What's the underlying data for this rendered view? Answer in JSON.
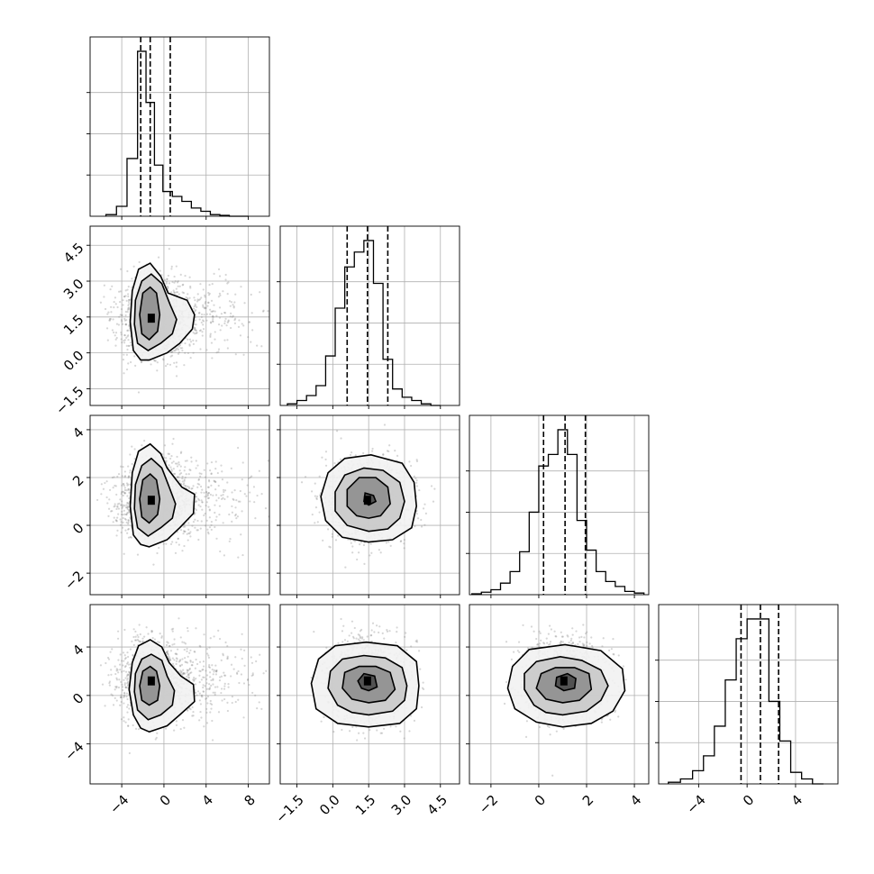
{
  "chart_data": {
    "type": "corner",
    "grid": true,
    "parameters": [
      {
        "index": 0,
        "range": [
          -7,
          10
        ],
        "ticks": [
          -4,
          0,
          4,
          8
        ],
        "tick_labels": [
          "−4",
          "0",
          "4",
          "8"
        ],
        "quantiles": [
          -2.2,
          -1.3,
          0.6
        ]
      },
      {
        "index": 1,
        "range": [
          -2.2,
          5.3
        ],
        "ticks": [
          -1.5,
          0.0,
          1.5,
          3.0,
          4.5
        ],
        "tick_labels": [
          "−1.5",
          "0.0",
          "1.5",
          "3.0",
          "4.5"
        ],
        "quantiles": [
          0.6,
          1.45,
          2.3
        ]
      },
      {
        "index": 2,
        "range": [
          -2.9,
          4.6
        ],
        "ticks": [
          -2,
          0,
          2,
          4
        ],
        "tick_labels": [
          "−2",
          "0",
          "2",
          "4"
        ],
        "quantiles": [
          0.2,
          1.1,
          1.95
        ]
      },
      {
        "index": 3,
        "range": [
          -7.3,
          7.5
        ],
        "ticks": [
          -4,
          0,
          4
        ],
        "tick_labels": [
          "−4",
          "0",
          "4"
        ],
        "quantiles": [
          -0.5,
          1.1,
          2.6
        ]
      }
    ],
    "histograms": [
      {
        "param": 0,
        "bin_edges": [
          -5.5,
          -4.5,
          -3.5,
          -2.5,
          -1.7,
          -0.9,
          -0.1,
          0.8,
          1.7,
          2.6,
          3.5,
          4.4,
          5.3,
          6.2,
          7.1,
          8.0
        ],
        "counts": [
          0.01,
          0.06,
          0.35,
          1.0,
          0.69,
          0.31,
          0.15,
          0.12,
          0.09,
          0.05,
          0.03,
          0.01,
          0.005,
          0.0,
          0.0
        ],
        "ylim": [
          0,
          1.0
        ]
      },
      {
        "param": 1,
        "bin_edges": [
          -1.9,
          -1.5,
          -1.1,
          -0.7,
          -0.3,
          0.1,
          0.5,
          0.9,
          1.3,
          1.7,
          2.1,
          2.5,
          2.9,
          3.3,
          3.7,
          4.1,
          4.5
        ],
        "counts": [
          0.01,
          0.03,
          0.06,
          0.12,
          0.3,
          0.59,
          0.84,
          0.93,
          1.0,
          0.74,
          0.28,
          0.1,
          0.05,
          0.03,
          0.01,
          0.0
        ],
        "ylim": [
          0,
          1.0
        ]
      },
      {
        "param": 2,
        "bin_edges": [
          -2.8,
          -2.4,
          -2.0,
          -1.6,
          -1.2,
          -0.8,
          -0.4,
          0.0,
          0.4,
          0.8,
          1.2,
          1.6,
          2.0,
          2.4,
          2.8,
          3.2,
          3.6,
          4.0,
          4.4
        ],
        "counts": [
          0.005,
          0.015,
          0.03,
          0.07,
          0.14,
          0.26,
          0.5,
          0.78,
          0.85,
          1.0,
          0.85,
          0.45,
          0.27,
          0.14,
          0.08,
          0.05,
          0.02,
          0.01
        ],
        "ylim": [
          0,
          1.0
        ]
      },
      {
        "param": 3,
        "bin_edges": [
          -6.5,
          -5.5,
          -4.5,
          -3.6,
          -2.7,
          -1.8,
          -0.9,
          0.0,
          0.9,
          1.8,
          2.7,
          3.6,
          4.5,
          5.4,
          6.3
        ],
        "counts": [
          0.01,
          0.03,
          0.08,
          0.17,
          0.35,
          0.63,
          0.88,
          1.0,
          1.0,
          0.5,
          0.26,
          0.07,
          0.03,
          0.0
        ],
        "ylim": [
          0,
          1.0
        ]
      }
    ],
    "joint_panels": [
      {
        "x_param": 0,
        "y_param": 1,
        "center": [
          -1.2,
          1.45
        ],
        "levels": [
          [
            [
              -1.4,
              -0.3
            ],
            [
              0.3,
              0.0
            ],
            [
              1.5,
              0.4
            ],
            [
              2.7,
              1.0
            ],
            [
              2.9,
              1.6
            ],
            [
              2.2,
              2.2
            ],
            [
              0.4,
              2.5
            ],
            [
              -0.3,
              3.2
            ],
            [
              -1.3,
              3.75
            ],
            [
              -2.4,
              3.5
            ],
            [
              -3.0,
              2.6
            ],
            [
              -3.2,
              1.3
            ],
            [
              -2.9,
              0.1
            ],
            [
              -2.2,
              -0.3
            ]
          ],
          [
            [
              -1.5,
              0.1
            ],
            [
              -0.3,
              0.4
            ],
            [
              0.8,
              0.8
            ],
            [
              1.2,
              1.4
            ],
            [
              0.6,
              2.0
            ],
            [
              -0.2,
              2.9
            ],
            [
              -1.2,
              3.3
            ],
            [
              -2.1,
              3.0
            ],
            [
              -2.7,
              2.2
            ],
            [
              -2.8,
              1.2
            ],
            [
              -2.5,
              0.4
            ]
          ],
          [
            [
              -1.4,
              0.55
            ],
            [
              -0.6,
              0.9
            ],
            [
              -0.4,
              1.6
            ],
            [
              -0.7,
              2.5
            ],
            [
              -1.3,
              2.75
            ],
            [
              -2.0,
              2.5
            ],
            [
              -2.3,
              1.6
            ],
            [
              -2.1,
              0.8
            ]
          ]
        ]
      },
      {
        "x_param": 0,
        "y_param": 2,
        "center": [
          -1.2,
          1.05
        ],
        "levels": [
          [
            [
              -1.4,
              -0.9
            ],
            [
              0.3,
              -0.6
            ],
            [
              1.5,
              -0.1
            ],
            [
              2.8,
              0.5
            ],
            [
              2.9,
              1.3
            ],
            [
              1.7,
              1.6
            ],
            [
              0.3,
              2.4
            ],
            [
              -0.3,
              3.0
            ],
            [
              -1.3,
              3.4
            ],
            [
              -2.4,
              3.1
            ],
            [
              -3.0,
              2.2
            ],
            [
              -3.2,
              0.8
            ],
            [
              -2.9,
              -0.4
            ],
            [
              -2.2,
              -0.8
            ]
          ],
          [
            [
              -1.5,
              -0.45
            ],
            [
              -0.3,
              -0.1
            ],
            [
              0.8,
              0.3
            ],
            [
              1.1,
              0.9
            ],
            [
              0.5,
              1.6
            ],
            [
              -0.2,
              2.4
            ],
            [
              -1.2,
              2.8
            ],
            [
              -2.1,
              2.5
            ],
            [
              -2.7,
              1.7
            ],
            [
              -2.8,
              0.7
            ],
            [
              -2.5,
              -0.1
            ]
          ],
          [
            [
              -1.4,
              0.1
            ],
            [
              -0.6,
              0.45
            ],
            [
              -0.4,
              1.1
            ],
            [
              -0.7,
              1.9
            ],
            [
              -1.3,
              2.15
            ],
            [
              -2.0,
              1.9
            ],
            [
              -2.3,
              1.1
            ],
            [
              -2.1,
              0.35
            ]
          ]
        ]
      },
      {
        "x_param": 1,
        "y_param": 2,
        "center": [
          1.45,
          1.05
        ],
        "levels": [
          [
            [
              1.5,
              -0.7
            ],
            [
              2.5,
              -0.6
            ],
            [
              3.3,
              -0.1
            ],
            [
              3.5,
              0.8
            ],
            [
              3.4,
              1.8
            ],
            [
              2.9,
              2.6
            ],
            [
              1.6,
              2.95
            ],
            [
              0.5,
              2.8
            ],
            [
              -0.2,
              2.2
            ],
            [
              -0.5,
              1.2
            ],
            [
              -0.3,
              0.2
            ],
            [
              0.4,
              -0.5
            ]
          ],
          [
            [
              1.5,
              -0.25
            ],
            [
              2.3,
              -0.15
            ],
            [
              2.8,
              0.3
            ],
            [
              3.0,
              1.0
            ],
            [
              2.8,
              1.8
            ],
            [
              2.1,
              2.3
            ],
            [
              1.3,
              2.4
            ],
            [
              0.5,
              2.1
            ],
            [
              0.1,
              1.4
            ],
            [
              0.1,
              0.6
            ],
            [
              0.6,
              0.0
            ]
          ],
          [
            [
              1.5,
              0.3
            ],
            [
              2.0,
              0.4
            ],
            [
              2.4,
              0.9
            ],
            [
              2.3,
              1.6
            ],
            [
              1.8,
              2.0
            ],
            [
              1.1,
              2.0
            ],
            [
              0.6,
              1.5
            ],
            [
              0.6,
              0.8
            ],
            [
              1.0,
              0.4
            ]
          ],
          [
            [
              1.5,
              0.85
            ],
            [
              1.8,
              1.0
            ],
            [
              1.7,
              1.25
            ],
            [
              1.35,
              1.35
            ],
            [
              1.3,
              1.0
            ]
          ]
        ]
      },
      {
        "x_param": 0,
        "y_param": 3,
        "center": [
          -1.2,
          1.2
        ],
        "levels": [
          [
            [
              -1.4,
              -3.0
            ],
            [
              0.3,
              -2.5
            ],
            [
              1.5,
              -1.6
            ],
            [
              2.9,
              -0.5
            ],
            [
              2.8,
              0.9
            ],
            [
              1.6,
              1.6
            ],
            [
              0.5,
              2.7
            ],
            [
              -0.2,
              4.0
            ],
            [
              -1.3,
              4.6
            ],
            [
              -2.4,
              4.1
            ],
            [
              -3.0,
              2.7
            ],
            [
              -3.3,
              0.5
            ],
            [
              -2.9,
              -1.6
            ],
            [
              -2.2,
              -2.7
            ]
          ],
          [
            [
              -1.5,
              -2.0
            ],
            [
              -0.3,
              -1.6
            ],
            [
              0.8,
              -0.8
            ],
            [
              1.0,
              0.4
            ],
            [
              0.3,
              1.6
            ],
            [
              -0.2,
              2.9
            ],
            [
              -1.2,
              3.4
            ],
            [
              -2.1,
              3.0
            ],
            [
              -2.7,
              1.8
            ],
            [
              -2.8,
              0.3
            ],
            [
              -2.5,
              -1.2
            ]
          ],
          [
            [
              -1.4,
              -0.8
            ],
            [
              -0.6,
              -0.4
            ],
            [
              -0.4,
              0.8
            ],
            [
              -0.7,
              2.0
            ],
            [
              -1.3,
              2.4
            ],
            [
              -2.0,
              2.0
            ],
            [
              -2.3,
              0.8
            ],
            [
              -2.1,
              -0.4
            ]
          ]
        ]
      },
      {
        "x_param": 1,
        "y_param": 3,
        "center": [
          1.45,
          1.2
        ],
        "levels": [
          [
            [
              1.5,
              -2.6
            ],
            [
              2.8,
              -2.3
            ],
            [
              3.5,
              -1.1
            ],
            [
              3.6,
              0.8
            ],
            [
              3.5,
              2.8
            ],
            [
              2.7,
              4.1
            ],
            [
              1.4,
              4.4
            ],
            [
              0.1,
              4.1
            ],
            [
              -0.6,
              3.0
            ],
            [
              -0.9,
              1.0
            ],
            [
              -0.7,
              -1.1
            ],
            [
              0.2,
              -2.3
            ]
          ],
          [
            [
              1.5,
              -1.6
            ],
            [
              2.5,
              -1.3
            ],
            [
              3.0,
              -0.4
            ],
            [
              3.1,
              0.8
            ],
            [
              2.9,
              2.3
            ],
            [
              2.2,
              3.1
            ],
            [
              1.3,
              3.3
            ],
            [
              0.4,
              3.0
            ],
            [
              -0.1,
              2.0
            ],
            [
              -0.2,
              0.6
            ],
            [
              0.2,
              -0.8
            ],
            [
              0.8,
              -1.4
            ]
          ],
          [
            [
              1.5,
              -0.6
            ],
            [
              2.2,
              -0.4
            ],
            [
              2.6,
              0.5
            ],
            [
              2.4,
              1.9
            ],
            [
              1.8,
              2.4
            ],
            [
              1.1,
              2.4
            ],
            [
              0.5,
              1.9
            ],
            [
              0.4,
              0.6
            ],
            [
              0.8,
              -0.3
            ]
          ],
          [
            [
              1.5,
              0.4
            ],
            [
              1.85,
              0.7
            ],
            [
              1.75,
              1.6
            ],
            [
              1.3,
              1.8
            ],
            [
              1.05,
              1.2
            ],
            [
              1.2,
              0.6
            ]
          ]
        ]
      },
      {
        "x_param": 2,
        "y_param": 3,
        "center": [
          1.05,
          1.2
        ],
        "levels": [
          [
            [
              1.0,
              -2.6
            ],
            [
              2.2,
              -2.3
            ],
            [
              3.1,
              -1.3
            ],
            [
              3.6,
              0.4
            ],
            [
              3.5,
              2.2
            ],
            [
              2.6,
              3.7
            ],
            [
              1.1,
              4.2
            ],
            [
              -0.4,
              3.8
            ],
            [
              -1.1,
              2.4
            ],
            [
              -1.3,
              0.6
            ],
            [
              -1.0,
              -1.1
            ],
            [
              -0.1,
              -2.2
            ]
          ],
          [
            [
              1.0,
              -1.6
            ],
            [
              2.0,
              -1.3
            ],
            [
              2.6,
              -0.4
            ],
            [
              2.9,
              0.8
            ],
            [
              2.6,
              2.1
            ],
            [
              1.8,
              2.9
            ],
            [
              0.9,
              3.2
            ],
            [
              -0.1,
              2.8
            ],
            [
              -0.6,
              1.8
            ],
            [
              -0.6,
              0.5
            ],
            [
              -0.2,
              -0.8
            ],
            [
              0.3,
              -1.4
            ]
          ],
          [
            [
              1.0,
              -0.6
            ],
            [
              1.7,
              -0.4
            ],
            [
              2.2,
              0.5
            ],
            [
              2.1,
              1.8
            ],
            [
              1.5,
              2.3
            ],
            [
              0.7,
              2.3
            ],
            [
              0.1,
              1.8
            ],
            [
              -0.1,
              0.6
            ],
            [
              0.3,
              -0.3
            ]
          ],
          [
            [
              1.05,
              0.4
            ],
            [
              1.5,
              0.6
            ],
            [
              1.55,
              1.4
            ],
            [
              1.2,
              1.8
            ],
            [
              0.75,
              1.5
            ],
            [
              0.7,
              0.8
            ]
          ]
        ]
      }
    ]
  }
}
